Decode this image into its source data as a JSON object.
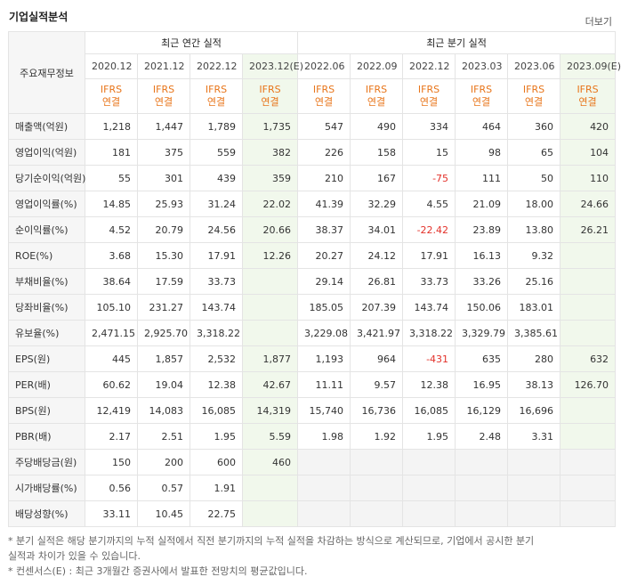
{
  "header": {
    "title": "기업실적분석",
    "more": "더보기"
  },
  "table": {
    "corner": "주요재무정보",
    "groups": [
      {
        "label": "최근 연간 실적",
        "periods": [
          {
            "label": "2020.12"
          },
          {
            "label": "2021.12"
          },
          {
            "label": "2022.12"
          },
          {
            "label": "2023.12(E)",
            "estimate": true
          }
        ],
        "accounting": [
          [
            "IFRS",
            "연결"
          ],
          [
            "IFRS",
            "연결"
          ],
          [
            "IFRS",
            "연결"
          ],
          [
            "IFRS",
            "연결"
          ]
        ]
      },
      {
        "label": "최근 분기 실적",
        "periods": [
          {
            "label": "2022.06"
          },
          {
            "label": "2022.09"
          },
          {
            "label": "2022.12"
          },
          {
            "label": "2023.03"
          },
          {
            "label": "2023.06"
          },
          {
            "label": "2023.09(E)",
            "estimate": true
          }
        ],
        "accounting": [
          [
            "IFRS",
            "연결"
          ],
          [
            "IFRS",
            "연결"
          ],
          [
            "IFRS",
            "연결"
          ],
          [
            "IFRS",
            "연결"
          ],
          [
            "IFRS",
            "연결"
          ],
          [
            "IFRS",
            "연결"
          ]
        ]
      }
    ],
    "sections": [
      [
        {
          "label": "매출액(억원)",
          "values": [
            [
              "1,218",
              "1,447",
              "1,789",
              "1,735"
            ],
            [
              "547",
              "490",
              "334",
              "464",
              "360",
              "420"
            ]
          ]
        },
        {
          "label": "영업이익(억원)",
          "values": [
            [
              "181",
              "375",
              "559",
              "382"
            ],
            [
              "226",
              "158",
              "15",
              "98",
              "65",
              "104"
            ]
          ]
        },
        {
          "label": "당기순이익(억원)",
          "values": [
            [
              "55",
              "301",
              "439",
              "359"
            ],
            [
              "210",
              "167",
              "-75",
              "111",
              "50",
              "110"
            ]
          ]
        }
      ],
      [
        {
          "label": "영업이익률(%)",
          "values": [
            [
              "14.85",
              "25.93",
              "31.24",
              "22.02"
            ],
            [
              "41.39",
              "32.29",
              "4.55",
              "21.09",
              "18.00",
              "24.66"
            ]
          ]
        },
        {
          "label": "순이익률(%)",
          "values": [
            [
              "4.52",
              "20.79",
              "24.56",
              "20.66"
            ],
            [
              "38.37",
              "34.01",
              "-22.42",
              "23.89",
              "13.80",
              "26.21"
            ]
          ]
        },
        {
          "label": "ROE(%)",
          "values": [
            [
              "3.68",
              "15.30",
              "17.91",
              "12.26"
            ],
            [
              "20.27",
              "24.12",
              "17.91",
              "16.13",
              "9.32",
              null
            ]
          ]
        },
        {
          "label": "부채비율(%)",
          "values": [
            [
              "38.64",
              "17.59",
              "33.73",
              null
            ],
            [
              "29.14",
              "26.81",
              "33.73",
              "33.26",
              "25.16",
              null
            ]
          ]
        },
        {
          "label": "당좌비율(%)",
          "values": [
            [
              "105.10",
              "231.27",
              "143.74",
              null
            ],
            [
              "185.05",
              "207.39",
              "143.74",
              "150.06",
              "183.01",
              null
            ]
          ]
        },
        {
          "label": "유보율(%)",
          "values": [
            [
              "2,471.15",
              "2,925.70",
              "3,318.22",
              null
            ],
            [
              "3,229.08",
              "3,421.97",
              "3,318.22",
              "3,329.79",
              "3,385.61",
              null
            ]
          ]
        }
      ],
      [
        {
          "label": "EPS(원)",
          "values": [
            [
              "445",
              "1,857",
              "2,532",
              "1,877"
            ],
            [
              "1,193",
              "964",
              "-431",
              "635",
              "280",
              "632"
            ]
          ]
        },
        {
          "label": "PER(배)",
          "values": [
            [
              "60.62",
              "19.04",
              "12.38",
              "42.67"
            ],
            [
              "11.11",
              "9.57",
              "12.38",
              "16.95",
              "38.13",
              "126.70"
            ]
          ]
        },
        {
          "label": "BPS(원)",
          "values": [
            [
              "12,419",
              "14,083",
              "16,085",
              "14,319"
            ],
            [
              "15,740",
              "16,736",
              "16,085",
              "16,129",
              "16,696",
              null
            ]
          ]
        },
        {
          "label": "PBR(배)",
          "values": [
            [
              "2.17",
              "2.51",
              "1.95",
              "5.59"
            ],
            [
              "1.98",
              "1.92",
              "1.95",
              "2.48",
              "3.31",
              null
            ]
          ]
        }
      ],
      [
        {
          "label": "주당배당금(원)",
          "values": [
            [
              "150",
              "200",
              "600",
              "460"
            ],
            [
              null,
              null,
              null,
              null,
              null,
              null
            ]
          ]
        },
        {
          "label": "시가배당률(%)",
          "values": [
            [
              "0.56",
              "0.57",
              "1.91",
              null
            ],
            [
              null,
              null,
              null,
              null,
              null,
              null
            ]
          ]
        },
        {
          "label": "배당성향(%)",
          "values": [
            [
              "33.11",
              "10.45",
              "22.75",
              null
            ],
            [
              null,
              null,
              null,
              null,
              null,
              null
            ]
          ]
        }
      ]
    ]
  },
  "notes": [
    "* 분기 실적은 해당 분기까지의 누적 실적에서 직전 분기까지의 누적 실적을 차감하는 방식으로 계산되므로, 기업에서 공시한 분기 실적과 차이가 있을 수 있습니다.",
    "* 컨센서스(E) : 최근 3개월간 증권사에서 발표한 전망치의 평균값입니다."
  ]
}
